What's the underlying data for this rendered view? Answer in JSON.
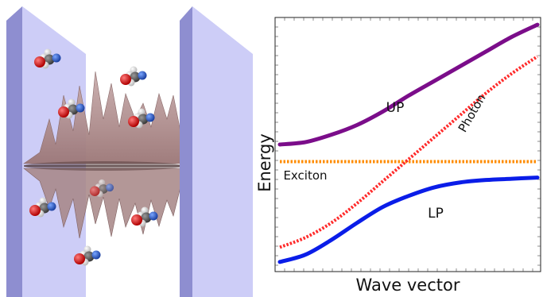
{
  "figure": {
    "left_panel": {
      "mirror_color": "#c8c8f6",
      "mirror_edge_color": "#8a8ac8",
      "wave_color": "#b99a9a",
      "molecule_count": 9
    }
  },
  "chart_data": {
    "type": "line",
    "title": "",
    "xlabel": "Wave vector",
    "ylabel": "Energy",
    "xlim": [
      0,
      1
    ],
    "ylim": [
      0,
      1
    ],
    "grid": false,
    "ticks_labeled": false,
    "series": [
      {
        "name": "UP",
        "style": "solid",
        "color": "#7b0d8a",
        "x": [
          0,
          0.1,
          0.2,
          0.3,
          0.4,
          0.5,
          0.6,
          0.7,
          0.8,
          0.9,
          1.0
        ],
        "y": [
          0.5,
          0.51,
          0.54,
          0.58,
          0.635,
          0.7,
          0.76,
          0.82,
          0.88,
          0.94,
          0.99
        ]
      },
      {
        "name": "Photon",
        "style": "dotted",
        "color": "#ff2b2b",
        "x": [
          0,
          0.1,
          0.2,
          0.3,
          0.4,
          0.5,
          0.6,
          0.7,
          0.8,
          0.9,
          1.0
        ],
        "y": [
          0.08,
          0.12,
          0.18,
          0.26,
          0.35,
          0.44,
          0.53,
          0.62,
          0.71,
          0.79,
          0.86
        ]
      },
      {
        "name": "Exciton",
        "style": "dotted",
        "color": "#ff8c00",
        "x": [
          0,
          1.0
        ],
        "y": [
          0.43,
          0.43
        ]
      },
      {
        "name": "LP",
        "style": "solid",
        "color": "#0a1de8",
        "x": [
          0,
          0.1,
          0.2,
          0.3,
          0.4,
          0.5,
          0.6,
          0.7,
          0.8,
          0.9,
          1.0
        ],
        "y": [
          0.02,
          0.05,
          0.11,
          0.18,
          0.245,
          0.29,
          0.325,
          0.345,
          0.355,
          0.36,
          0.365
        ]
      }
    ],
    "labels": [
      {
        "text": "UP",
        "series": "UP"
      },
      {
        "text": "Photon",
        "series": "Photon"
      },
      {
        "text": "Exciton",
        "series": "Exciton"
      },
      {
        "text": "LP",
        "series": "LP"
      }
    ]
  }
}
